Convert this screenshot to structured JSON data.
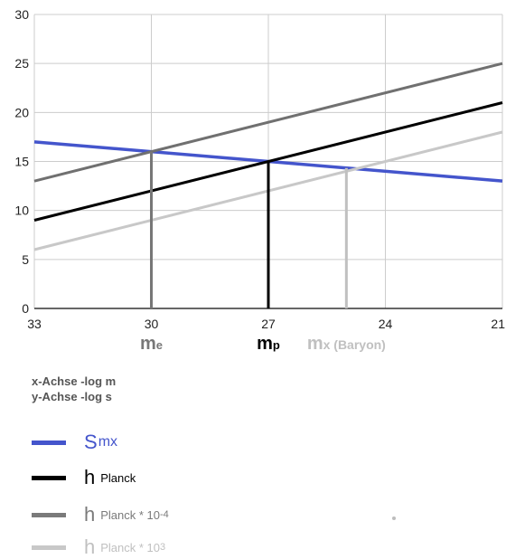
{
  "chart_data": {
    "type": "line",
    "xlim": [
      33,
      21
    ],
    "ylim": [
      0,
      30
    ],
    "x_ticks": [
      "33",
      "30",
      "27",
      "24",
      "21"
    ],
    "y_ticks": [
      "0",
      "5",
      "10",
      "15",
      "20",
      "25",
      "30"
    ],
    "grid": true,
    "series": [
      {
        "name": "S mx",
        "color": "#4455cc",
        "x": [
          33,
          21
        ],
        "y": [
          17,
          13
        ]
      },
      {
        "name": "h Planck",
        "color": "#000000",
        "x": [
          33,
          21
        ],
        "y": [
          9,
          21
        ]
      },
      {
        "name": "h Planck * 10^-4",
        "color": "#707070",
        "x": [
          33,
          21
        ],
        "y": [
          13,
          25
        ]
      },
      {
        "name": "h Planck * 10^3",
        "color": "#c8c8c8",
        "x": [
          33,
          21
        ],
        "y": [
          6,
          18
        ]
      }
    ],
    "markers": [
      {
        "label": "me",
        "main": "m",
        "sub": "e",
        "x": 30,
        "y": 16,
        "color": "#777777"
      },
      {
        "label": "mp",
        "main": "m",
        "sub": "p",
        "x": 27,
        "y": 15,
        "color": "#000000"
      },
      {
        "label": "mx (Baryon)",
        "main": "m",
        "sub": "x (Baryon)",
        "x": 25,
        "y": 14.33,
        "color": "#c0c0c0"
      }
    ]
  },
  "axis_notes": {
    "x": "x-Achse   -log m",
    "y": "y-Achse   -log s"
  },
  "legend": [
    {
      "main": "S",
      "sub": "mx",
      "sup": "",
      "color": "#4455cc",
      "text_color": "#4455cc"
    },
    {
      "main": "h",
      "sub": "Planck",
      "sup": "",
      "color": "#000000",
      "text_color": "#000000"
    },
    {
      "main": "h",
      "sub": "Planck * 10",
      "sup": "-4",
      "color": "#7a7a7a",
      "text_color": "#7a7a7a"
    },
    {
      "main": "h",
      "sub": "Planck  * 10",
      "sup": "3",
      "color": "#c8c8c8",
      "text_color": "#c0c0c0"
    }
  ]
}
